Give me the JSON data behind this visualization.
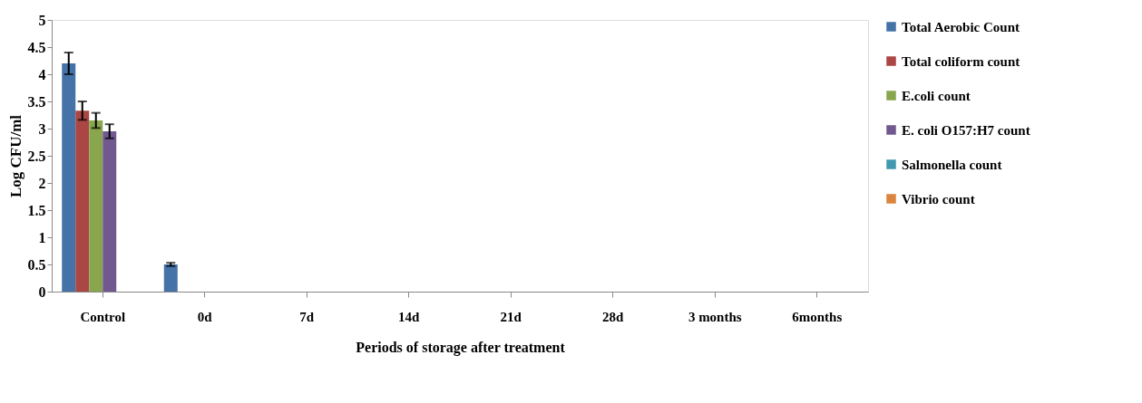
{
  "chart_data": {
    "type": "bar",
    "xlabel": "Periods of storage after treatment",
    "ylabel": "Log CFU/ml",
    "categories": [
      "Control",
      "0d",
      "7d",
      "14d",
      "21d",
      "28d",
      "3 months",
      "6months"
    ],
    "series": [
      {
        "name": "Total Aerobic Count",
        "color": "#4572a7",
        "values": [
          4.2,
          0.5,
          0,
          0,
          0,
          0,
          0,
          0
        ],
        "errors": [
          0.2,
          0.03,
          null,
          null,
          null,
          null,
          null,
          null
        ]
      },
      {
        "name": "Total coliform count",
        "color": "#aa4643",
        "values": [
          3.33,
          0,
          0,
          0,
          0,
          0,
          0,
          0
        ],
        "errors": [
          0.17,
          null,
          null,
          null,
          null,
          null,
          null,
          null
        ]
      },
      {
        "name": "E.coli count",
        "color": "#89a54e",
        "values": [
          3.15,
          0,
          0,
          0,
          0,
          0,
          0,
          0
        ],
        "errors": [
          0.14,
          null,
          null,
          null,
          null,
          null,
          null,
          null
        ]
      },
      {
        "name": "E. coli O157:H7 count",
        "color": "#71588f",
        "values": [
          2.95,
          0,
          0,
          0,
          0,
          0,
          0,
          0
        ],
        "errors": [
          0.13,
          null,
          null,
          null,
          null,
          null,
          null,
          null
        ]
      },
      {
        "name": "Salmonella count",
        "color": "#4198af",
        "values": [
          0,
          0,
          0,
          0,
          0,
          0,
          0,
          0
        ]
      },
      {
        "name": "Vibrio count",
        "color": "#db843d",
        "values": [
          0,
          0,
          0,
          0,
          0,
          0,
          0,
          0
        ]
      }
    ],
    "ylim": [
      0,
      5
    ],
    "yticks": [
      0,
      0.5,
      1,
      1.5,
      2,
      2.5,
      3,
      3.5,
      4,
      4.5,
      5
    ],
    "grid": false,
    "legend": "right"
  }
}
